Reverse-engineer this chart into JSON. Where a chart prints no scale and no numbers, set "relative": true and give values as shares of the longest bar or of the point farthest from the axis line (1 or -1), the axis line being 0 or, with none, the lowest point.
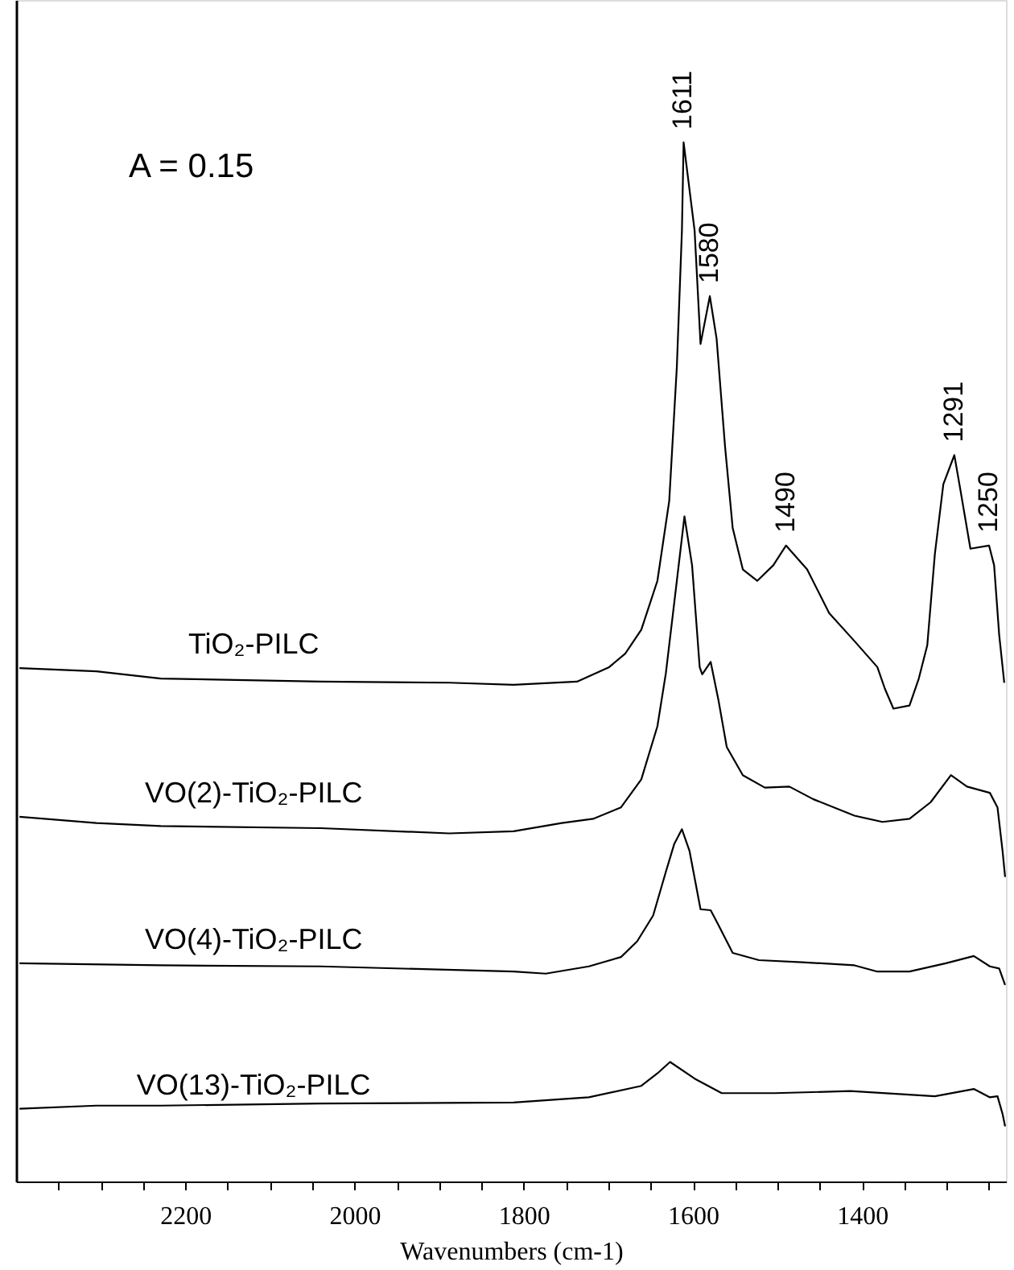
{
  "chart_data": {
    "type": "line",
    "relative": true,
    "xlabel": "Wavenumbers (cm-1)",
    "legend": false,
    "xlim": [
      2400,
      1230
    ],
    "xticks": [
      {
        "value": 2350,
        "label": null
      },
      {
        "value": 2300,
        "label": null
      },
      {
        "value": 2250,
        "label": null
      },
      2200,
      {
        "value": 2150,
        "label": null
      },
      {
        "value": 2100,
        "label": null
      },
      {
        "value": 2050,
        "label": null
      },
      2000,
      {
        "value": 1950,
        "label": null
      },
      {
        "value": 1900,
        "label": null
      },
      {
        "value": 1850,
        "label": null
      },
      1800,
      {
        "value": 1750,
        "label": null
      },
      {
        "value": 1700,
        "label": null
      },
      {
        "value": 1650,
        "label": null
      },
      1600,
      {
        "value": 1550,
        "label": null
      },
      {
        "value": 1500,
        "label": null
      },
      {
        "value": 1450,
        "label": null
      },
      1400,
      {
        "value": 1350,
        "label": null
      },
      {
        "value": 1300,
        "label": null
      },
      {
        "value": 1250,
        "label": null
      }
    ],
    "annotations": [
      "A = 0.15",
      {
        "text": "1611",
        "x": 1611,
        "y": 1.0
      },
      {
        "text": "1580",
        "x": 1580,
        "y": 0.852
      },
      {
        "text": "1490",
        "x": 1490,
        "y": 0.612
      },
      {
        "text": "1291",
        "x": 1291,
        "y": 0.699
      },
      {
        "text": "1250",
        "x": 1250,
        "y": 0.612
      }
    ],
    "series": [
      {
        "name": "TiO₂-PILC",
        "color": "#000000",
        "x": [
          2396,
          2305,
          2229,
          2040,
          1888,
          1812,
          1737,
          1699,
          1680,
          1661,
          1642,
          1628,
          1619,
          1613,
          1611,
          1598,
          1591,
          1580,
          1572,
          1562,
          1553,
          1541,
          1524,
          1505,
          1490,
          1465,
          1439,
          1409,
          1382,
          1373,
          1363,
          1344,
          1333,
          1323,
          1314,
          1304,
          1291,
          1285,
          1272,
          1250,
          1244,
          1238,
          1232
        ],
        "values": [
          0.494,
          0.491,
          0.484,
          0.481,
          0.48,
          0.478,
          0.481,
          0.495,
          0.508,
          0.531,
          0.578,
          0.655,
          0.784,
          0.915,
          1.0,
          0.915,
          0.806,
          0.852,
          0.811,
          0.707,
          0.629,
          0.589,
          0.578,
          0.593,
          0.612,
          0.589,
          0.547,
          0.52,
          0.495,
          0.474,
          0.455,
          0.458,
          0.484,
          0.516,
          0.604,
          0.671,
          0.699,
          0.671,
          0.609,
          0.612,
          0.593,
          0.526,
          0.48
        ]
      },
      {
        "name": "VO(2)-TiO₂-PILC",
        "color": "#000000",
        "x": [
          2396,
          2305,
          2229,
          2040,
          1888,
          1812,
          1755,
          1718,
          1685,
          1661,
          1642,
          1632,
          1619,
          1610,
          1601,
          1592,
          1589,
          1579,
          1570,
          1560,
          1541,
          1515,
          1486,
          1458,
          1409,
          1376,
          1344,
          1319,
          1295,
          1276,
          1249,
          1240,
          1234,
          1231
        ],
        "values": [
          0.351,
          0.345,
          0.342,
          0.34,
          0.335,
          0.337,
          0.345,
          0.349,
          0.36,
          0.387,
          0.438,
          0.489,
          0.578,
          0.64,
          0.593,
          0.495,
          0.488,
          0.5,
          0.464,
          0.418,
          0.391,
          0.379,
          0.38,
          0.368,
          0.352,
          0.346,
          0.349,
          0.365,
          0.391,
          0.38,
          0.374,
          0.36,
          0.318,
          0.293
        ]
      },
      {
        "name": "VO(4)-TiO₂-PILC",
        "color": "#000000",
        "x": [
          2396,
          2229,
          2040,
          1812,
          1774,
          1723,
          1685,
          1666,
          1647,
          1632,
          1622,
          1613,
          1604,
          1591,
          1579,
          1570,
          1553,
          1522,
          1471,
          1409,
          1382,
          1344,
          1301,
          1268,
          1249,
          1238,
          1231
        ],
        "values": [
          0.21,
          0.208,
          0.207,
          0.202,
          0.2,
          0.207,
          0.216,
          0.231,
          0.256,
          0.298,
          0.325,
          0.339,
          0.318,
          0.262,
          0.261,
          0.247,
          0.22,
          0.213,
          0.211,
          0.208,
          0.202,
          0.202,
          0.21,
          0.217,
          0.207,
          0.205,
          0.189
        ]
      },
      {
        "name": "VO(13)-TiO₂-PILC",
        "color": "#000000",
        "x": [
          2396,
          2305,
          2229,
          2040,
          1812,
          1723,
          1661,
          1642,
          1627,
          1598,
          1566,
          1503,
          1414,
          1314,
          1268,
          1249,
          1240,
          1234,
          1231
        ],
        "values": [
          0.07,
          0.073,
          0.073,
          0.075,
          0.076,
          0.081,
          0.092,
          0.104,
          0.115,
          0.099,
          0.085,
          0.085,
          0.087,
          0.082,
          0.089,
          0.081,
          0.082,
          0.065,
          0.053
        ]
      }
    ]
  }
}
